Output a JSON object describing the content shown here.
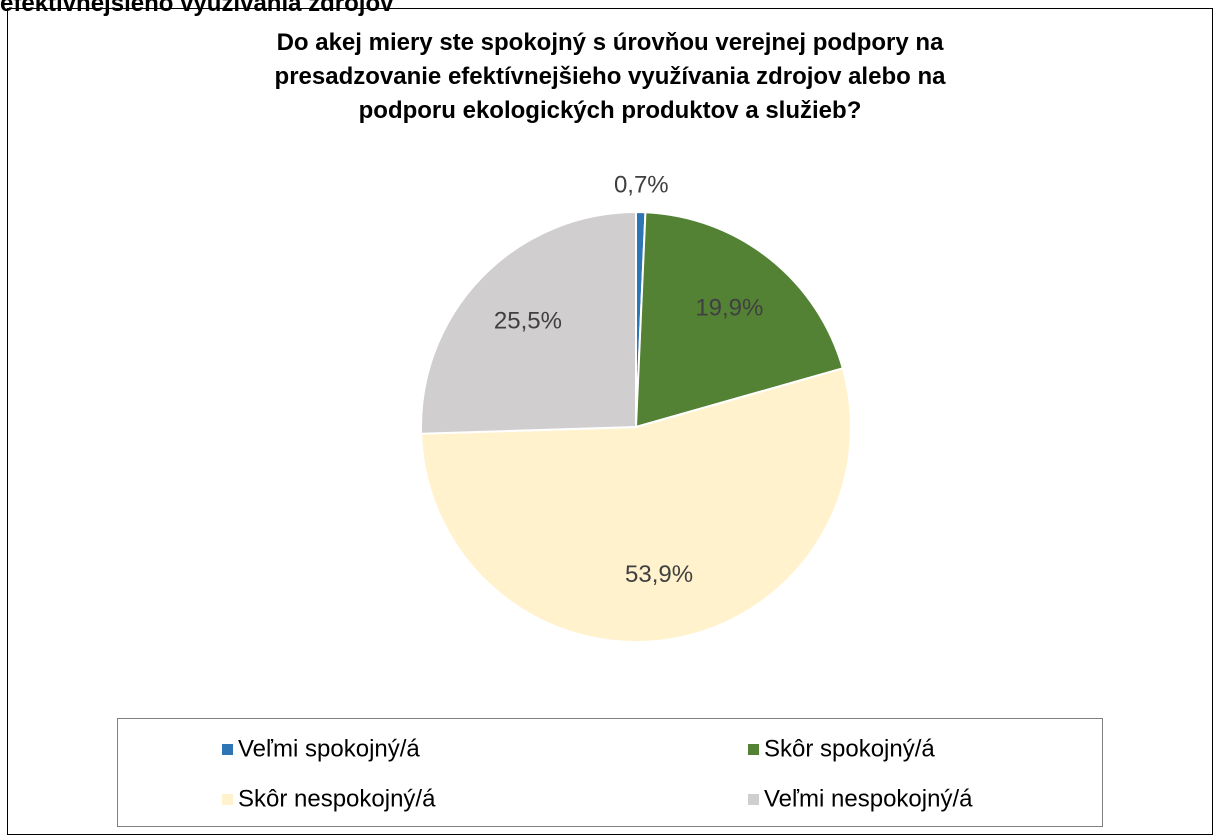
{
  "page_caption": "efektívnejšieho využívania zdrojov",
  "chart_data": {
    "type": "pie",
    "title": [
      "Do akej miery ste spokojný s úrovňou verejnej podpory na",
      "presadzovanie efektívnejšieho využívania zdrojov alebo na",
      "podporu ekologických produktov a služieb?"
    ],
    "categories": [
      "Veľmi spokojný/á",
      "Skôr spokojný/á",
      "Skôr nespokojný/á",
      "Veľmi nespokojný/á"
    ],
    "values": [
      0.7,
      19.9,
      53.9,
      25.5
    ],
    "value_labels": [
      "0,7%",
      "19,9%",
      "53,9%",
      "25,5%"
    ],
    "colors": [
      "#2e75b6",
      "#548235",
      "#fff2cc",
      "#d0cece"
    ],
    "legend": "bottom"
  }
}
